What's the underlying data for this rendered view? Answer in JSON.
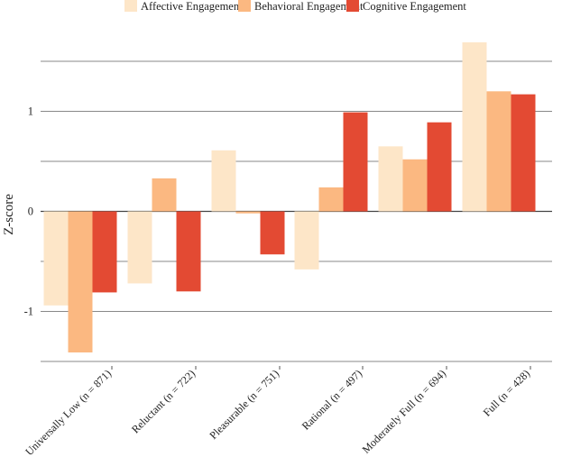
{
  "chart_data": {
    "type": "bar",
    "title": "",
    "xlabel": "",
    "ylabel": "Z-score",
    "ylim": [
      -1.5,
      1.7
    ],
    "yticks": [
      1,
      0,
      -1
    ],
    "grid": true,
    "legend_position": "top-center",
    "categories": [
      "Universally Low (n = 871)",
      "Reluctant (n = 722)",
      "Pleasurable (n = 751)",
      "Rational (n = 497)",
      "Moderately Full (n = 694)",
      "Full (n = 428)"
    ],
    "series": [
      {
        "name": "Affective Engagement",
        "color": "#fde6c8",
        "values": [
          -0.94,
          -0.72,
          0.61,
          -0.58,
          0.65,
          1.69
        ]
      },
      {
        "name": "Behavioral Engagement",
        "color": "#fbb881",
        "values": [
          -1.41,
          0.33,
          -0.02,
          0.24,
          0.52,
          1.2
        ]
      },
      {
        "name": "Cognitive Engagement",
        "color": "#e34a33",
        "values": [
          -0.81,
          -0.8,
          -0.43,
          0.99,
          0.89,
          1.17
        ]
      }
    ]
  }
}
